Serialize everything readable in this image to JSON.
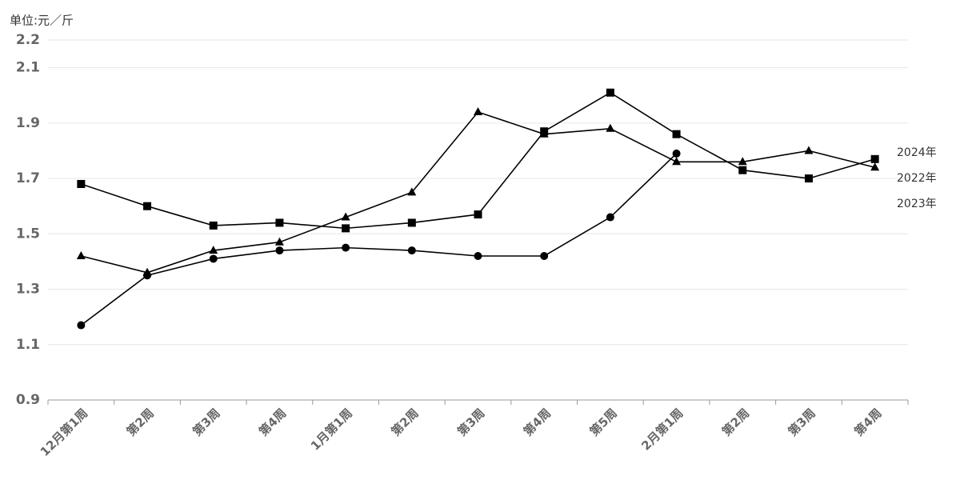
{
  "chart_data": {
    "type": "line",
    "y_label": "单位:元／斤",
    "categories": [
      "12月第1周",
      "第2周",
      "第3周",
      "第4周",
      "1月第1周",
      "第2周",
      "第3周",
      "第4周",
      "第5周",
      "2月第1周",
      "第2周",
      "第3周",
      "第4周"
    ],
    "series": [
      {
        "name": "2024年",
        "color": "#000000",
        "marker": "circle",
        "values": [
          1.17,
          1.35,
          1.41,
          1.44,
          1.45,
          1.44,
          1.42,
          1.42,
          1.56,
          1.79,
          null,
          null,
          null
        ]
      },
      {
        "name": "2022年",
        "color": "#000000",
        "marker": "square",
        "values": [
          1.68,
          1.6,
          1.53,
          1.54,
          1.52,
          1.54,
          1.57,
          1.87,
          2.01,
          1.86,
          1.73,
          1.7,
          1.77
        ]
      },
      {
        "name": "2023年",
        "color": "#000000",
        "marker": "triangle",
        "values": [
          1.42,
          1.36,
          1.44,
          1.47,
          1.56,
          1.65,
          1.94,
          1.86,
          1.88,
          1.76,
          1.76,
          1.8,
          1.74
        ]
      }
    ],
    "ylim": [
      0.9,
      2.2
    ],
    "yticks": [
      0.9,
      1.1,
      1.3,
      1.5,
      1.7,
      1.9,
      2.1,
      2.2
    ],
    "grid": true
  }
}
